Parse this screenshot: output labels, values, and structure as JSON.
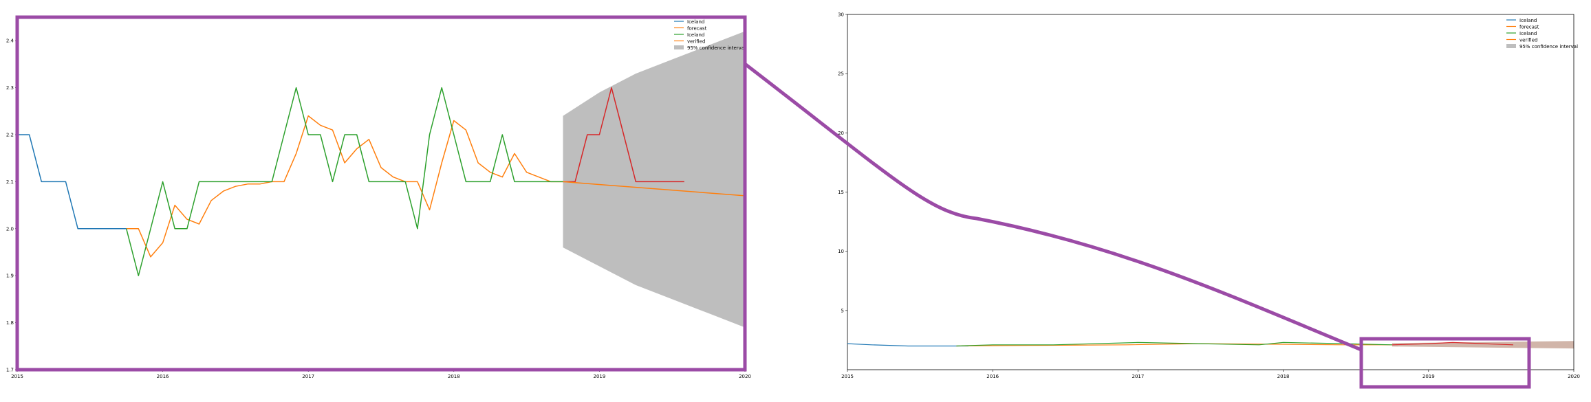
{
  "chart_data": [
    {
      "type": "line",
      "panel": "zoomed",
      "xlim": [
        "2015-01",
        "2020-01"
      ],
      "ylim": [
        1.7,
        2.45
      ],
      "x_ticks": [
        "2015",
        "2016",
        "2017",
        "2018",
        "2019",
        "2020"
      ],
      "y_ticks": [
        "1.7",
        "1.8",
        "1.9",
        "2.0",
        "2.1",
        "2.2",
        "2.3",
        "2.4"
      ],
      "legend": {
        "location": "top-right",
        "entries": [
          "Iceland",
          "forecast",
          "Iceland",
          "verified",
          "95% confidence interval"
        ]
      },
      "series": [
        {
          "name": "Iceland",
          "color": "#1f77b4",
          "x": [
            "2015-01",
            "2015-02",
            "2015-03",
            "2015-04",
            "2015-05",
            "2015-06",
            "2015-07",
            "2015-08",
            "2015-09",
            "2015-10",
            "2015-11"
          ],
          "values": [
            2.2,
            2.2,
            2.1,
            2.1,
            2.1,
            2.0,
            2.0,
            2.0,
            2.0,
            2.0,
            2.0
          ]
        },
        {
          "name": "forecast",
          "color": "#ff7f0e",
          "x": [
            "2015-10",
            "2015-11",
            "2015-12",
            "2016-01",
            "2016-02",
            "2016-03",
            "2016-04",
            "2016-05",
            "2016-06",
            "2016-07",
            "2016-08",
            "2016-09",
            "2016-10",
            "2016-11",
            "2016-12",
            "2017-01",
            "2017-02",
            "2017-03",
            "2017-04",
            "2017-05",
            "2017-06",
            "2017-07",
            "2017-08",
            "2017-09",
            "2017-10",
            "2017-11",
            "2017-12",
            "2018-01",
            "2018-02",
            "2018-03",
            "2018-04",
            "2018-05",
            "2018-06",
            "2018-07",
            "2018-08",
            "2018-09",
            "2018-10"
          ],
          "values": [
            2.0,
            2.0,
            1.94,
            1.97,
            2.05,
            2.02,
            2.01,
            2.06,
            2.08,
            2.09,
            2.095,
            2.095,
            2.1,
            2.1,
            2.16,
            2.24,
            2.22,
            2.21,
            2.14,
            2.17,
            2.19,
            2.13,
            2.11,
            2.1,
            2.1,
            2.04,
            2.14,
            2.23,
            2.21,
            2.14,
            2.12,
            2.11,
            2.16,
            2.12,
            2.11,
            2.1,
            2.1
          ]
        },
        {
          "name": "Iceland",
          "color": "#2ca02c",
          "x": [
            "2015-10",
            "2015-11",
            "2015-12",
            "2016-01",
            "2016-02",
            "2016-03",
            "2016-04",
            "2016-05",
            "2016-06",
            "2016-07",
            "2016-08",
            "2016-09",
            "2016-10",
            "2016-11",
            "2016-12",
            "2017-01",
            "2017-02",
            "2017-03",
            "2017-04",
            "2017-05",
            "2017-06",
            "2017-07",
            "2017-08",
            "2017-09",
            "2017-10",
            "2017-11",
            "2017-12",
            "2018-01",
            "2018-02",
            "2018-03",
            "2018-04",
            "2018-05",
            "2018-06",
            "2018-07",
            "2018-08",
            "2018-09",
            "2018-10"
          ],
          "values": [
            2.0,
            1.9,
            2.0,
            2.1,
            2.0,
            2.0,
            2.1,
            2.1,
            2.1,
            2.1,
            2.1,
            2.1,
            2.1,
            2.2,
            2.3,
            2.2,
            2.2,
            2.1,
            2.2,
            2.2,
            2.1,
            2.1,
            2.1,
            2.1,
            2.0,
            2.2,
            2.3,
            2.2,
            2.1,
            2.1,
            2.1,
            2.2,
            2.1,
            2.1,
            2.1,
            2.1,
            2.1
          ]
        },
        {
          "name": "verified",
          "color": "#d62728",
          "x": [
            "2018-10",
            "2018-11",
            "2018-12",
            "2019-01",
            "2019-02",
            "2019-03",
            "2019-04",
            "2019-05",
            "2019-06",
            "2019-07",
            "2019-08"
          ],
          "values": [
            2.1,
            2.1,
            2.2,
            2.2,
            2.3,
            2.2,
            2.1,
            2.1,
            2.1,
            2.1,
            2.1
          ]
        },
        {
          "name": "forecast-mean",
          "color": "#ff7f0e",
          "x": [
            "2018-10",
            "2020-01"
          ],
          "values": [
            2.1,
            2.07
          ]
        }
      ],
      "confidence_interval": {
        "label": "95% confidence interval",
        "color": "#bebebe",
        "x": [
          "2018-10",
          "2019-01",
          "2019-04",
          "2019-07",
          "2019-10",
          "2020-01"
        ],
        "lower": [
          1.96,
          1.92,
          1.88,
          1.85,
          1.82,
          1.79
        ],
        "upper": [
          2.24,
          2.29,
          2.33,
          2.36,
          2.39,
          2.42
        ]
      }
    },
    {
      "type": "line",
      "panel": "overview",
      "xlim": [
        "2015-01",
        "2020-01"
      ],
      "ylim": [
        0,
        30
      ],
      "x_ticks": [
        "2015",
        "2016",
        "2017",
        "2018",
        "2019",
        "2020"
      ],
      "y_ticks": [
        "5",
        "10",
        "15",
        "20",
        "25",
        "30"
      ],
      "legend": {
        "location": "top-right",
        "entries": [
          "Iceland",
          "forecast",
          "Iceland",
          "verified",
          "95% confidence interval"
        ]
      },
      "series": [
        {
          "name": "Iceland",
          "color": "#1f77b4",
          "x": [
            "2015-01",
            "2015-03",
            "2015-06",
            "2015-11"
          ],
          "values": [
            2.2,
            2.1,
            2.0,
            2.0
          ]
        },
        {
          "name": "forecast",
          "color": "#ff7f0e",
          "x": [
            "2015-10",
            "2016-04",
            "2016-12",
            "2017-06",
            "2017-12",
            "2018-06",
            "2018-10"
          ],
          "values": [
            2.0,
            2.05,
            2.1,
            2.2,
            2.15,
            2.1,
            2.1
          ]
        },
        {
          "name": "Iceland",
          "color": "#2ca02c",
          "x": [
            "2015-10",
            "2016-01",
            "2016-06",
            "2017-01",
            "2017-06",
            "2017-11",
            "2018-01",
            "2018-06",
            "2018-10"
          ],
          "values": [
            2.0,
            2.1,
            2.1,
            2.3,
            2.2,
            2.1,
            2.3,
            2.2,
            2.1
          ]
        },
        {
          "name": "verified",
          "color": "#d62728",
          "x": [
            "2018-10",
            "2019-01",
            "2019-03",
            "2019-08"
          ],
          "values": [
            2.1,
            2.2,
            2.3,
            2.1
          ]
        }
      ],
      "confidence_interval": {
        "label": "95% confidence interval",
        "color": "#bebebe",
        "x": [
          "2018-10",
          "2020-01"
        ],
        "lower": [
          1.96,
          1.79
        ],
        "upper": [
          2.24,
          2.42
        ]
      }
    }
  ],
  "colors": {
    "highlight_frame": "#9b4ba6",
    "axes": "#000000",
    "ci_overview": "#c9a89a"
  }
}
